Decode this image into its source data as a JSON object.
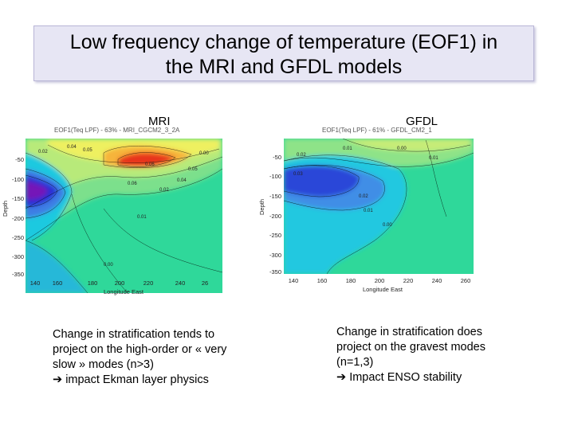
{
  "slide": {
    "title_line1": "Low frequency change of temperature (EOF1) in",
    "title_line2": "the MRI and GFDL models"
  },
  "left": {
    "model_label": "MRI",
    "plot_title": "EOF1(Teq LPF) - 63% - MRI_CGCM2_3_2A",
    "ylabel": "Depth",
    "xlabel": "Longitude East",
    "yticks": [
      "-50",
      "-100",
      "-150",
      "-200",
      "-250",
      "-300",
      "-350"
    ],
    "xticks": [
      "140",
      "160",
      "180",
      "200",
      "220",
      "240",
      "26"
    ],
    "contour_labels": [
      "0.02",
      "0.04",
      "0.05",
      "0.06",
      "0.06",
      "0.04",
      "0.05",
      "0.02",
      "0.01",
      "0.00",
      "0.00"
    ],
    "caption_lines": [
      "Change in stratification tends to",
      "project on the high-order  or  « very",
      "slow » modes (n>3)",
      "impact Ekman layer physics"
    ]
  },
  "right": {
    "model_label": "GFDL",
    "plot_title": "EOF1(Teq LPF) - 61% - GFDL_CM2_1",
    "ylabel": "Depth",
    "xlabel": "Longitude East",
    "yticks": [
      "-50",
      "-100",
      "-150",
      "-200",
      "-250",
      "-300",
      "-350"
    ],
    "xticks": [
      "140",
      "160",
      "180",
      "200",
      "220",
      "240",
      "260"
    ],
    "contour_labels": [
      "0.02",
      "0.01",
      "0.00",
      "0.03",
      "0.02",
      "0.01",
      "0.00",
      "0.01"
    ],
    "caption_lines": [
      "Change in stratification does",
      "project on the gravest modes",
      "(n=1,3)",
      "Impact ENSO stability"
    ]
  },
  "icons": {
    "arrow": "right-arrow-icon"
  }
}
